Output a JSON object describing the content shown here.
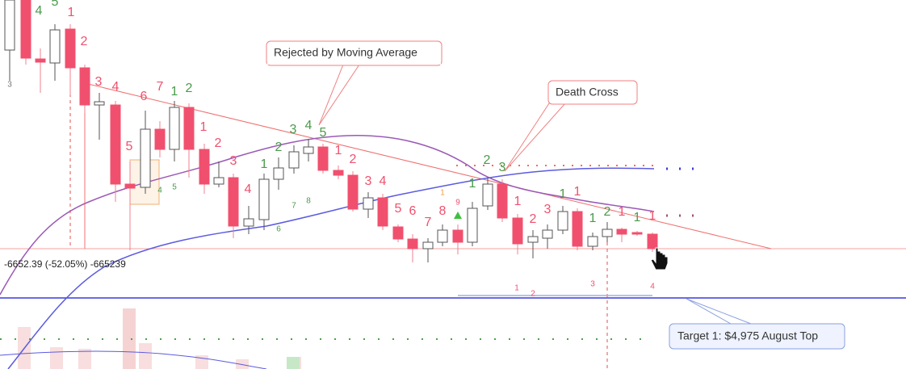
{
  "annotations": {
    "rejected": "Rejected by Moving Average",
    "death_cross": "Death Cross",
    "target": "Target 1: $4,975 August Top",
    "measure": "-6652.39 (-52.05%) -665239"
  },
  "counts": [
    "4",
    "5",
    "1",
    "2",
    "3",
    "3",
    "4",
    "6",
    "7",
    "1",
    "2",
    "5",
    "4",
    "5",
    "1",
    "2",
    "3",
    "4",
    "1",
    "6",
    "2",
    "7",
    "3",
    "8",
    "4",
    "5",
    "1",
    "2",
    "3",
    "4",
    "5",
    "6",
    "7",
    "8",
    "9",
    "1",
    "1",
    "2",
    "3",
    "1",
    "2",
    "3",
    "1",
    "1",
    "1",
    "2",
    "1",
    "1",
    "1",
    "1",
    "2",
    "3",
    "4"
  ]
}
